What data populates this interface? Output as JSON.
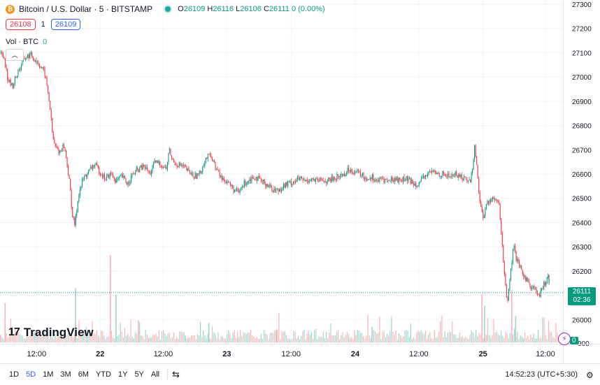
{
  "header": {
    "coin_icon": "bitcoin-icon",
    "symbol": "Bitcoin / U.S. Dollar · 5 · BITSTAMP",
    "ohlc": {
      "o_label": "O",
      "o": "26109",
      "h_label": "H",
      "h": "26116",
      "l_label": "L",
      "l": "26106",
      "c_label": "C",
      "c": "26111",
      "change": "0 (0.00%)"
    },
    "bid": "26108",
    "spread": "1",
    "ask": "26109",
    "vol_label": "Vol · BTC",
    "vol_value": "0"
  },
  "logo_text": "TradingView",
  "price_tag": {
    "price": "26111",
    "countdown": "02:36"
  },
  "volume_tag": "0",
  "colors": {
    "up": "#089981",
    "down": "#f23645",
    "vol_up": "#9fd6cc",
    "vol_down": "#f5b5b9",
    "last_line": "#089981"
  },
  "chart_data": {
    "type": "candlestick",
    "symbol": "Bitcoin / U.S. Dollar",
    "interval": "5",
    "exchange": "BITSTAMP",
    "y_ticks": [
      26000,
      26100,
      26200,
      26300,
      26400,
      26500,
      26600,
      26700,
      26800,
      26900,
      27000,
      27100,
      27200,
      27300
    ],
    "x_ticks": [
      {
        "label": "12:00",
        "pos": 0.065,
        "bold": false
      },
      {
        "label": "22",
        "pos": 0.178,
        "bold": true
      },
      {
        "label": "12:00",
        "pos": 0.29,
        "bold": false
      },
      {
        "label": "23",
        "pos": 0.403,
        "bold": true
      },
      {
        "label": "12:00",
        "pos": 0.517,
        "bold": false
      },
      {
        "label": "24",
        "pos": 0.631,
        "bold": true
      },
      {
        "label": "12:00",
        "pos": 0.744,
        "bold": false
      },
      {
        "label": "25",
        "pos": 0.858,
        "bold": true
      },
      {
        "label": "12:00",
        "pos": 0.969,
        "bold": false
      }
    ],
    "last_price": 26111,
    "price_path": [
      [
        0.0,
        27100
      ],
      [
        0.008,
        27080
      ],
      [
        0.014,
        26990
      ],
      [
        0.022,
        26960
      ],
      [
        0.032,
        27020
      ],
      [
        0.045,
        27080
      ],
      [
        0.055,
        27090
      ],
      [
        0.068,
        27060
      ],
      [
        0.08,
        27020
      ],
      [
        0.085,
        26960
      ],
      [
        0.09,
        26880
      ],
      [
        0.095,
        26750
      ],
      [
        0.1,
        26710
      ],
      [
        0.108,
        26690
      ],
      [
        0.115,
        26720
      ],
      [
        0.12,
        26660
      ],
      [
        0.126,
        26550
      ],
      [
        0.131,
        26420
      ],
      [
        0.135,
        26390
      ],
      [
        0.142,
        26520
      ],
      [
        0.15,
        26580
      ],
      [
        0.16,
        26610
      ],
      [
        0.17,
        26640
      ],
      [
        0.18,
        26610
      ],
      [
        0.19,
        26580
      ],
      [
        0.2,
        26600
      ],
      [
        0.21,
        26570
      ],
      [
        0.22,
        26590
      ],
      [
        0.23,
        26560
      ],
      [
        0.24,
        26600
      ],
      [
        0.25,
        26620
      ],
      [
        0.26,
        26630
      ],
      [
        0.27,
        26600
      ],
      [
        0.28,
        26650
      ],
      [
        0.29,
        26640
      ],
      [
        0.3,
        26620
      ],
      [
        0.305,
        26700
      ],
      [
        0.312,
        26650
      ],
      [
        0.32,
        26640
      ],
      [
        0.33,
        26630
      ],
      [
        0.34,
        26610
      ],
      [
        0.35,
        26590
      ],
      [
        0.36,
        26600
      ],
      [
        0.37,
        26660
      ],
      [
        0.38,
        26680
      ],
      [
        0.39,
        26620
      ],
      [
        0.4,
        26580
      ],
      [
        0.41,
        26570
      ],
      [
        0.42,
        26540
      ],
      [
        0.43,
        26520
      ],
      [
        0.44,
        26560
      ],
      [
        0.45,
        26580
      ],
      [
        0.46,
        26590
      ],
      [
        0.47,
        26570
      ],
      [
        0.48,
        26560
      ],
      [
        0.49,
        26540
      ],
      [
        0.5,
        26530
      ],
      [
        0.51,
        26550
      ],
      [
        0.52,
        26560
      ],
      [
        0.53,
        26570
      ],
      [
        0.54,
        26580
      ],
      [
        0.55,
        26570
      ],
      [
        0.56,
        26580
      ],
      [
        0.57,
        26570
      ],
      [
        0.58,
        26575
      ],
      [
        0.59,
        26570
      ],
      [
        0.6,
        26580
      ],
      [
        0.61,
        26590
      ],
      [
        0.62,
        26600
      ],
      [
        0.63,
        26620
      ],
      [
        0.64,
        26610
      ],
      [
        0.65,
        26600
      ],
      [
        0.66,
        26580
      ],
      [
        0.67,
        26590
      ],
      [
        0.68,
        26570
      ],
      [
        0.69,
        26580
      ],
      [
        0.7,
        26570
      ],
      [
        0.71,
        26580
      ],
      [
        0.72,
        26575
      ],
      [
        0.73,
        26580
      ],
      [
        0.74,
        26570
      ],
      [
        0.75,
        26560
      ],
      [
        0.76,
        26570
      ],
      [
        0.77,
        26600
      ],
      [
        0.78,
        26610
      ],
      [
        0.79,
        26600
      ],
      [
        0.8,
        26600
      ],
      [
        0.81,
        26590
      ],
      [
        0.82,
        26600
      ],
      [
        0.83,
        26590
      ],
      [
        0.84,
        26580
      ],
      [
        0.848,
        26570
      ],
      [
        0.853,
        26640
      ],
      [
        0.856,
        26720
      ],
      [
        0.86,
        26620
      ],
      [
        0.866,
        26470
      ],
      [
        0.872,
        26420
      ],
      [
        0.878,
        26480
      ],
      [
        0.886,
        26500
      ],
      [
        0.894,
        26490
      ],
      [
        0.9,
        26470
      ],
      [
        0.905,
        26320
      ],
      [
        0.91,
        26180
      ],
      [
        0.915,
        26060
      ],
      [
        0.92,
        26180
      ],
      [
        0.926,
        26300
      ],
      [
        0.932,
        26240
      ],
      [
        0.94,
        26200
      ],
      [
        0.948,
        26170
      ],
      [
        0.956,
        26140
      ],
      [
        0.964,
        26130
      ],
      [
        0.972,
        26090
      ],
      [
        0.98,
        26140
      ],
      [
        0.988,
        26180
      ],
      [
        0.994,
        26130
      ],
      [
        1.0,
        26111
      ]
    ],
    "volume_spikes": [
      {
        "pos": 0.008,
        "h": 0.45
      },
      {
        "pos": 0.133,
        "h": 0.62
      },
      {
        "pos": 0.195,
        "h": 1.0
      },
      {
        "pos": 0.205,
        "h": 0.55
      },
      {
        "pos": 0.245,
        "h": 0.25
      },
      {
        "pos": 0.37,
        "h": 0.22
      },
      {
        "pos": 0.49,
        "h": 0.15
      },
      {
        "pos": 0.66,
        "h": 0.18
      },
      {
        "pos": 0.855,
        "h": 0.55
      },
      {
        "pos": 0.86,
        "h": 0.42
      },
      {
        "pos": 0.908,
        "h": 0.6
      },
      {
        "pos": 0.915,
        "h": 0.3
      }
    ]
  },
  "bottom": {
    "timeframes": [
      "1D",
      "5D",
      "1M",
      "3M",
      "6M",
      "YTD",
      "1Y",
      "5Y",
      "All"
    ],
    "active": "5D",
    "range_icon": "calendar-range-icon",
    "time": "14:52:23",
    "tz": "(UTC+5:30)",
    "settings_icon": "gear-icon"
  }
}
